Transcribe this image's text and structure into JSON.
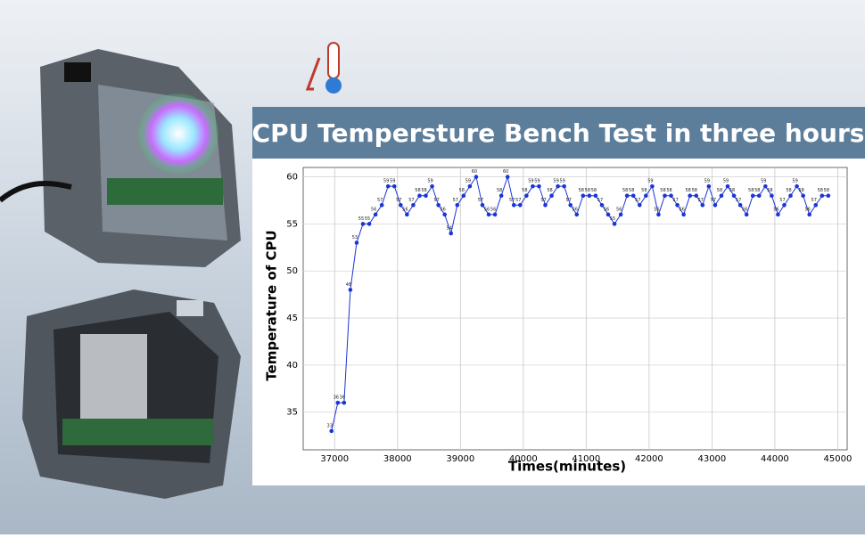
{
  "chart_data": {
    "type": "line",
    "title": "CPU Tempersture Bench Test in three hours",
    "x_label": "Times(minutes)",
    "y_label": "Temperature of CPU",
    "x": [
      36950,
      37050,
      37150,
      37250,
      37350,
      37450,
      37550,
      37650,
      37750,
      37850,
      37950,
      38050,
      38150,
      38250,
      38350,
      38450,
      38550,
      38650,
      38750,
      38850,
      38950,
      39050,
      39150,
      39250,
      39350,
      39450,
      39550,
      39650,
      39750,
      39850,
      39950,
      40050,
      40150,
      40250,
      40350,
      40450,
      40550,
      40650,
      40750,
      40850,
      40950,
      41050,
      41150,
      41250,
      41350,
      41450,
      41550,
      41650,
      41750,
      41850,
      41950,
      42050,
      42150,
      42250,
      42350,
      42450,
      42550,
      42650,
      42750,
      42850,
      42950,
      43050,
      43150,
      43250,
      43350,
      43450,
      43550,
      43650,
      43750,
      43850,
      43950,
      44050,
      44150,
      44250,
      44350,
      44450,
      44550,
      44650,
      44750,
      44850
    ],
    "series": [
      {
        "name": "CPU",
        "color": "#1a35d6",
        "values": [
          33,
          36,
          36,
          48,
          53,
          55,
          55,
          56,
          57,
          59,
          59,
          57,
          56,
          57,
          58,
          58,
          59,
          57,
          56,
          54,
          57,
          58,
          59,
          60,
          57,
          56,
          56,
          58,
          60,
          57,
          57,
          58,
          59,
          59,
          57,
          58,
          59,
          59,
          57,
          56,
          58,
          58,
          58,
          57,
          56,
          55,
          56,
          58,
          58,
          57,
          58,
          59,
          56,
          58,
          58,
          57,
          56,
          58,
          58,
          57,
          59,
          57,
          58,
          59,
          58,
          57,
          56,
          58,
          58,
          59,
          58,
          56,
          57,
          58,
          59,
          58,
          56,
          57,
          58,
          58
        ]
      }
    ],
    "xlim": [
      36500,
      45150
    ],
    "ylim": [
      31,
      61
    ],
    "xticks": [
      37000,
      38000,
      39000,
      40000,
      41000,
      42000,
      43000,
      44000,
      45000
    ],
    "yticks": [
      35,
      40,
      45,
      50,
      55,
      60
    ],
    "grid": true
  }
}
